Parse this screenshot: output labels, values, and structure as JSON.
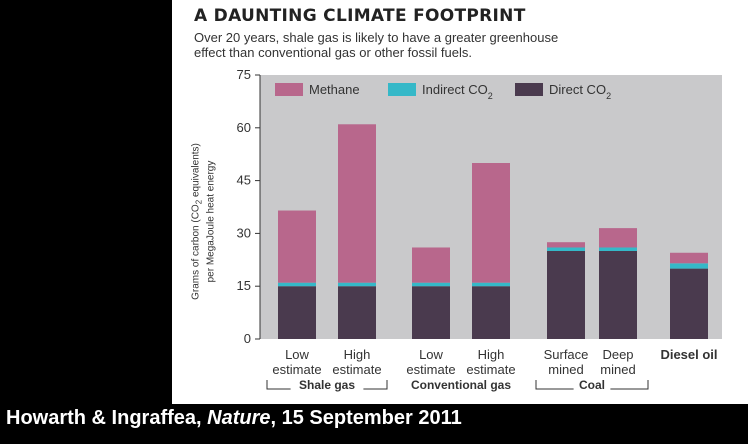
{
  "chart_data": {
    "type": "bar",
    "stacked": true,
    "title": "A DAUNTING CLIMATE FOOTPRINT",
    "subtitle_line1": "Over 20 years, shale gas is likely to have a greater greenhouse",
    "subtitle_line2": "effect than conventional gas or other fossil fuels.",
    "ylabel_line1": "Grams of carbon (CO",
    "ylabel_sub": "2",
    "ylabel_line1_end": " equivalents)",
    "ylabel_line2": "per MegaJoule heat energy",
    "ylim": [
      0,
      75
    ],
    "yticks": [
      "0",
      "15",
      "30",
      "45",
      "60",
      "75"
    ],
    "ytick_values": [
      0,
      15,
      30,
      45,
      60,
      75
    ],
    "grid": false,
    "legend_placement": "top",
    "categories": [
      [
        "Low",
        "estimate"
      ],
      [
        "High",
        "estimate"
      ],
      [
        "Low",
        "estimate"
      ],
      [
        "High",
        "estimate"
      ],
      [
        "Surface",
        "mined"
      ],
      [
        "Deep",
        "mined"
      ],
      [
        "Diesel oil"
      ]
    ],
    "groups": [
      {
        "label": "Shale gas",
        "members": [
          0,
          1
        ]
      },
      {
        "label": "Conventional gas",
        "members": [
          2,
          3
        ]
      },
      {
        "label": "Coal",
        "members": [
          4,
          5
        ]
      }
    ],
    "series": [
      {
        "name": "Direct CO",
        "name_sub": "2",
        "color": "#4a3a4e",
        "values": [
          15,
          15,
          15,
          15,
          25,
          25,
          20
        ]
      },
      {
        "name": "Indirect CO",
        "name_sub": "2",
        "color": "#35b8c8",
        "values": [
          1,
          1,
          1,
          1,
          1,
          1,
          1.5
        ]
      },
      {
        "name": "Methane",
        "name_sub": "",
        "color": "#b8678c",
        "values": [
          20.5,
          45,
          10,
          34,
          1.5,
          5.5,
          3
        ]
      }
    ],
    "legend_order": [
      2,
      1,
      0
    ]
  },
  "caption": {
    "authors": "Howarth & Ingraffea, ",
    "journal": "Nature",
    "date": ", 15 September 2011"
  },
  "colors": {
    "plot_background": "#c9c9cb",
    "panel_background": "#ffffff",
    "page_background": "#000000"
  }
}
